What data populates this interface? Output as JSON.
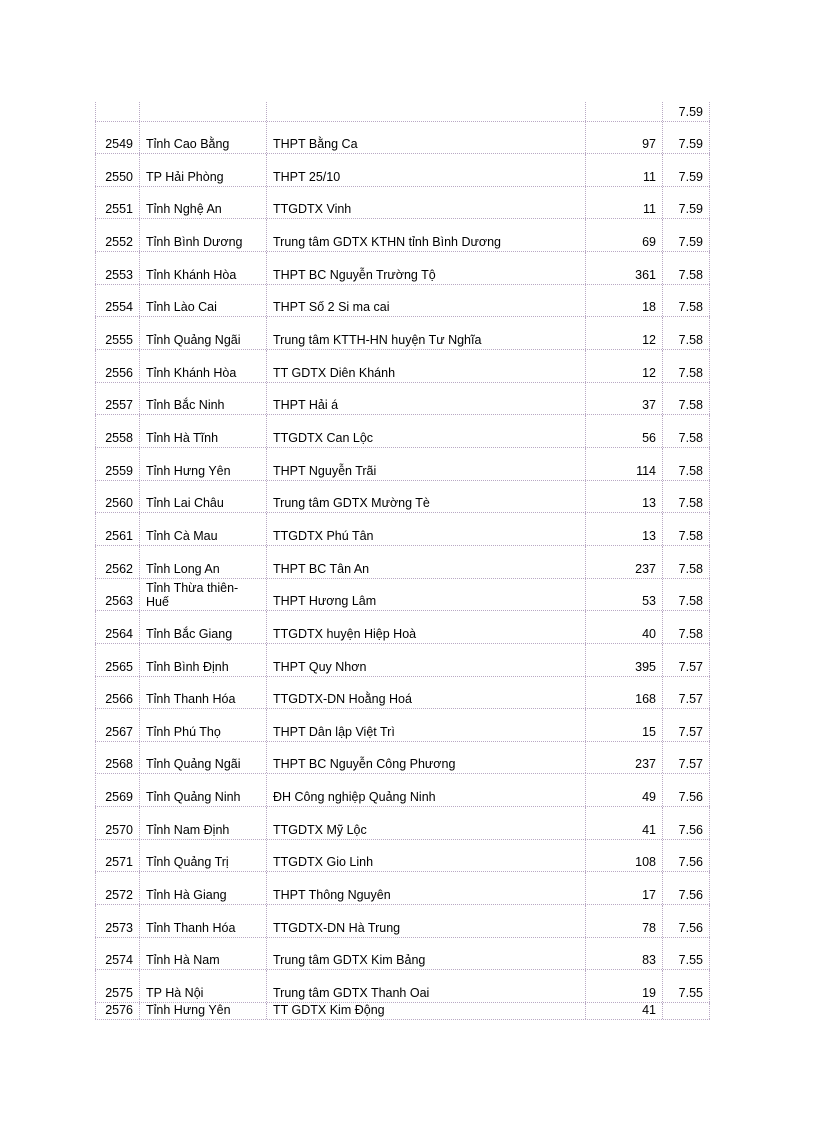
{
  "table": {
    "rows": [
      {
        "rank": "",
        "province": "",
        "school": "",
        "count": "",
        "score": "7.59"
      },
      {
        "rank": "2549",
        "province": "Tỉnh Cao Bằng",
        "school": "THPT Bằng Ca",
        "count": "97",
        "score": "7.59"
      },
      {
        "rank": "2550",
        "province": "TP Hải Phòng",
        "school": "THPT 25/10",
        "count": "11",
        "score": "7.59"
      },
      {
        "rank": "2551",
        "province": "Tỉnh Nghệ An",
        "school": "TTGDTX  Vinh",
        "count": "11",
        "score": "7.59"
      },
      {
        "rank": "2552",
        "province": "Tỉnh Bình Dương",
        "school": "Trung tâm GDTX  KTHN tỉnh Bình Dương",
        "count": "69",
        "score": "7.59"
      },
      {
        "rank": "2553",
        "province": "Tỉnh Khánh Hòa",
        "school": "THPT BC Nguyễn Trường Tộ",
        "count": "361",
        "score": "7.58"
      },
      {
        "rank": "2554",
        "province": "Tỉnh Lào Cai",
        "school": "THPT Số 2 Si ma cai",
        "count": "18",
        "score": "7.58"
      },
      {
        "rank": "2555",
        "province": "Tỉnh Quảng Ngãi",
        "school": "Trung tâm KTTH-HN  huyện Tư Nghĩa",
        "count": "12",
        "score": "7.58"
      },
      {
        "rank": "2556",
        "province": "Tỉnh Khánh Hòa",
        "school": "TT GDTX  Diên Khánh",
        "count": "12",
        "score": "7.58"
      },
      {
        "rank": "2557",
        "province": "Tỉnh Bắc Ninh",
        "school": "THPT Hải á",
        "count": "37",
        "score": "7.58"
      },
      {
        "rank": "2558",
        "province": "Tỉnh Hà Tĩnh",
        "school": "TTGDTX  Can Lộc",
        "count": "56",
        "score": "7.58"
      },
      {
        "rank": "2559",
        "province": "Tỉnh Hưng Yên",
        "school": "THPT Nguyễn Trãi",
        "count": "114",
        "score": "7.58"
      },
      {
        "rank": "2560",
        "province": "Tỉnh Lai Châu",
        "school": "Trung tâm GDTX  Mường Tè",
        "count": "13",
        "score": "7.58"
      },
      {
        "rank": "2561",
        "province": "Tỉnh Cà Mau",
        "school": "TTGDTX  Phú Tân",
        "count": "13",
        "score": "7.58"
      },
      {
        "rank": "2562",
        "province": "Tỉnh Long An",
        "school": "THPT BC Tân An",
        "count": "237",
        "score": "7.58"
      },
      {
        "rank": "2563",
        "province": "Tỉnh Thừa thiên-\nHuế",
        "school": "THPT Hương Lâm",
        "count": "53",
        "score": "7.58"
      },
      {
        "rank": "2564",
        "province": "Tỉnh Bắc Giang",
        "school": "TTGDTX  huyện Hiệp Hoà",
        "count": "40",
        "score": "7.58"
      },
      {
        "rank": "2565",
        "province": "Tỉnh Bình Định",
        "school": "THPT Quy Nhơn",
        "count": "395",
        "score": "7.57"
      },
      {
        "rank": "2566",
        "province": "Tỉnh Thanh Hóa",
        "school": "TTGDTX-DN   Hoằng Hoá",
        "count": "168",
        "score": "7.57"
      },
      {
        "rank": "2567",
        "province": "Tỉnh Phú Thọ",
        "school": "THPT Dân lập Việt Trì",
        "count": "15",
        "score": "7.57"
      },
      {
        "rank": "2568",
        "province": "Tỉnh Quảng Ngãi",
        "school": "THPT BC Nguyễn Công Phương",
        "count": "237",
        "score": "7.57"
      },
      {
        "rank": "2569",
        "province": "Tỉnh Quảng Ninh",
        "school": "ĐH Công nghiệp Quảng Ninh",
        "count": "49",
        "score": "7.56"
      },
      {
        "rank": "2570",
        "province": "Tỉnh Nam Định",
        "school": "TTGDTX  Mỹ Lộc",
        "count": "41",
        "score": "7.56"
      },
      {
        "rank": "2571",
        "province": "Tỉnh Quảng Trị",
        "school": "TTGDTX  Gio Linh",
        "count": "108",
        "score": "7.56"
      },
      {
        "rank": "2572",
        "province": "Tỉnh Hà Giang",
        "school": "THPT Thông Nguyên",
        "count": "17",
        "score": "7.56"
      },
      {
        "rank": "2573",
        "province": "Tỉnh Thanh Hóa",
        "school": "TTGDTX-DN   Hà Trung",
        "count": "78",
        "score": "7.56"
      },
      {
        "rank": "2574",
        "province": "Tỉnh Hà Nam",
        "school": "Trung tâm GDTX  Kim Bảng",
        "count": "83",
        "score": "7.55"
      },
      {
        "rank": "2575",
        "province": "TP Hà Nội",
        "school": "Trung tâm GDTX  Thanh  Oai",
        "count": "19",
        "score": "7.55"
      },
      {
        "rank": "2576",
        "province": "Tỉnh Hưng Yên",
        "school": "TT  GDTX  Kim Động",
        "count": "41",
        "score": ""
      }
    ]
  }
}
